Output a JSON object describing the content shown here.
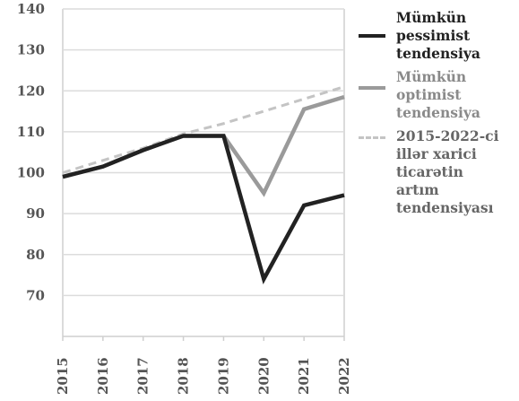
{
  "chart_data": {
    "type": "line",
    "title": "",
    "xlabel": "",
    "ylabel": "",
    "x": [
      "2015",
      "2016",
      "2017",
      "2018",
      "2019",
      "2020",
      "2021",
      "2022"
    ],
    "ylim": [
      60,
      140
    ],
    "yticks": [
      70,
      80,
      90,
      100,
      110,
      120,
      130,
      140
    ],
    "grid": "horizontal",
    "legend_position": "right",
    "series": [
      {
        "name": "Mümkün\npessimist\ntendensiya",
        "values": [
          99,
          101.5,
          105.5,
          109,
          109,
          74,
          92,
          94.5
        ],
        "color": "#222222",
        "style": "solid"
      },
      {
        "name": "Mümkün\noptimist\ntendensiya",
        "values": [
          99,
          101.5,
          105.5,
          109,
          109,
          95,
          115.5,
          118.5
        ],
        "color": "#9a9a9a",
        "style": "solid"
      },
      {
        "name": "2015-2022-ci\nillər xarici\nticarətin\nartım\ntendensiyası",
        "values": [
          100,
          103,
          106,
          109.5,
          112,
          115,
          118,
          121
        ],
        "color": "#c4c4c4",
        "style": "dashed"
      }
    ]
  }
}
